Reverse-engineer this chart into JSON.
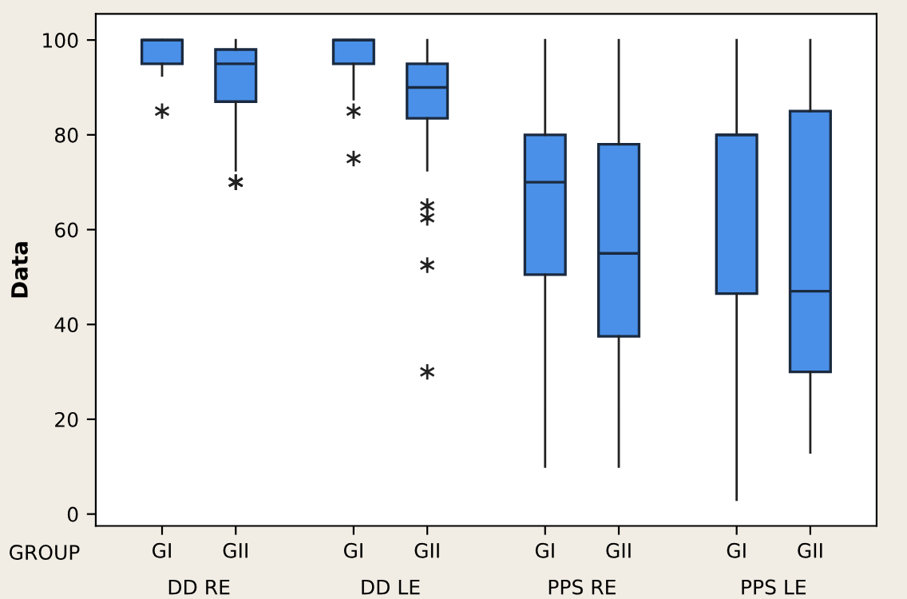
{
  "chart_data": {
    "type": "box",
    "ylabel": "Data",
    "xlabel": "GROUP",
    "categories": [
      "GI",
      "GII",
      "GI",
      "GII",
      "GI",
      "GII",
      "GI",
      "GII"
    ],
    "annotations": [
      "DD RE",
      "DD LE",
      "PPS RE",
      "PPS LE"
    ],
    "color": "#4a90e8",
    "boxes": [
      {
        "low": 92.5,
        "q1": 95,
        "median": 100,
        "q3": 100,
        "high": 100,
        "outliers": [
          85
        ]
      },
      {
        "low": 72.5,
        "q1": 87,
        "median": 95,
        "q3": 98,
        "high": 100,
        "outliers": [
          70,
          70,
          70
        ]
      },
      {
        "low": 87.5,
        "q1": 95,
        "median": 100,
        "q3": 100,
        "high": 100,
        "outliers": [
          85,
          75
        ]
      },
      {
        "low": 72.5,
        "q1": 83.5,
        "median": 90,
        "q3": 95,
        "high": 100,
        "outliers": [
          65,
          62.5,
          52.5,
          30
        ]
      },
      {
        "low": 10,
        "q1": 50.5,
        "median": 70,
        "q3": 80,
        "high": 100
      },
      {
        "low": 10,
        "q1": 37.5,
        "median": 55,
        "q3": 78,
        "high": 100
      },
      {
        "low": 3,
        "q1": 46.5,
        "median": 80,
        "q3": 80,
        "high": 100
      },
      {
        "low": 13,
        "q1": 30,
        "median": 47,
        "q3": 85,
        "high": 100
      }
    ],
    "ylim": [
      -2.5,
      105.5
    ],
    "yticks": [
      0,
      20,
      40,
      60,
      80,
      100
    ],
    "grid": false
  }
}
